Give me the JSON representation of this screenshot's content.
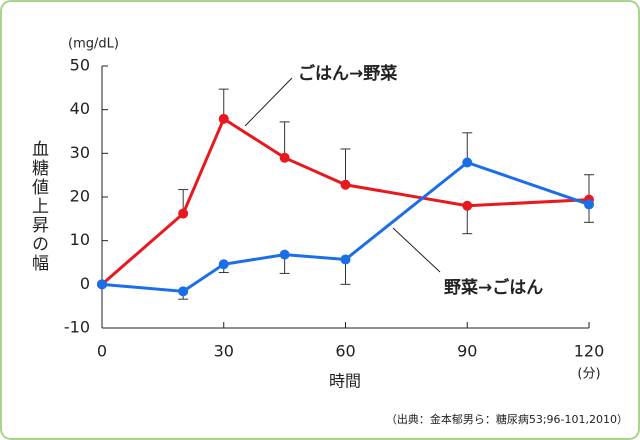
{
  "chart_data": {
    "type": "line",
    "y_unit": "(mg/dL)",
    "y_label": "血糖値上昇の幅",
    "x_label": "時間",
    "x_unit": "(分)",
    "source": "（出典：金本郁男ら：糖尿病53;96-101,2010）",
    "x": [
      0,
      20,
      30,
      45,
      60,
      90,
      120
    ],
    "series": [
      {
        "name": "ごはん→野菜",
        "color": "#e8191e",
        "values": [
          0,
          16.2,
          37.9,
          29,
          22.8,
          18,
          19.4
        ],
        "errors_up": [
          null,
          5.5,
          6.8,
          8.2,
          8.2,
          null,
          5.7
        ],
        "errors_down": [
          null,
          null,
          null,
          null,
          null,
          6.4,
          null
        ]
      },
      {
        "name": "野菜→ごはん",
        "color": "#1a6fe8",
        "values": [
          0,
          -1.6,
          4.6,
          6.8,
          5.7,
          27.9,
          18.3
        ],
        "errors_up": [
          null,
          null,
          null,
          null,
          null,
          6.8,
          null
        ],
        "errors_down": [
          null,
          1.8,
          1.9,
          4.3,
          5.7,
          null,
          4.1
        ]
      }
    ],
    "xlim": [
      0,
      120
    ],
    "xticks": [
      0,
      30,
      60,
      90,
      120
    ],
    "ylim": [
      -10,
      50
    ],
    "yticks": [
      -10,
      0,
      10,
      20,
      30,
      40,
      50
    ],
    "grid": false
  }
}
